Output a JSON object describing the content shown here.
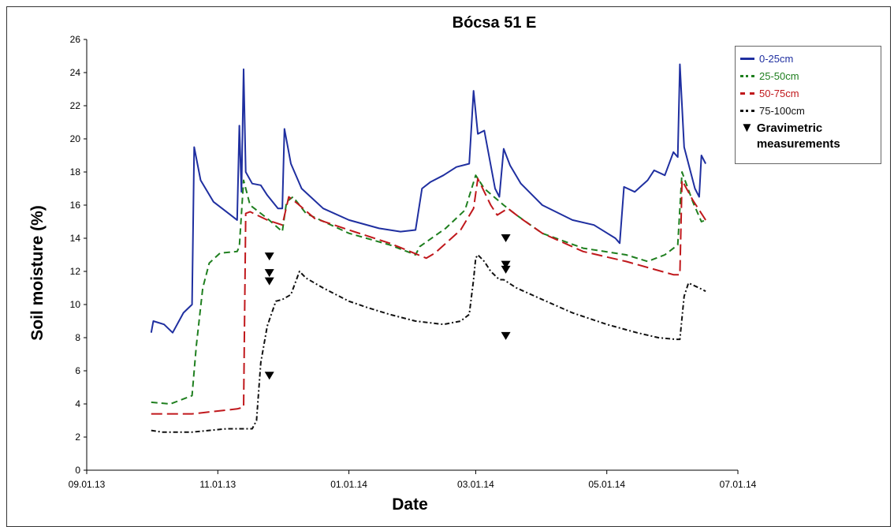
{
  "chart_data": {
    "type": "line",
    "title": "Bócsa 51 E",
    "xlabel": "Date",
    "ylabel": "Soil moisture (%)",
    "x_ticks": [
      "09.01.13",
      "11.01.13",
      "01.01.14",
      "03.01.14",
      "05.01.14",
      "07.01.14"
    ],
    "y_ticks": [
      0,
      2,
      4,
      6,
      8,
      10,
      12,
      14,
      16,
      18,
      20,
      22,
      24,
      26
    ],
    "xlim": [
      "2013-09-01",
      "2014-07-01"
    ],
    "ylim": [
      0,
      26
    ],
    "legend_position": "top-right",
    "series": [
      {
        "name": "0-25cm",
        "color": "#1f2fa0",
        "dash": "solid",
        "points": [
          [
            "2013-10-01",
            8.3
          ],
          [
            "2013-10-02",
            9.0
          ],
          [
            "2013-10-07",
            8.8
          ],
          [
            "2013-10-11",
            8.3
          ],
          [
            "2013-10-16",
            9.5
          ],
          [
            "2013-10-20",
            10.0
          ],
          [
            "2013-10-21",
            19.5
          ],
          [
            "2013-10-24",
            17.5
          ],
          [
            "2013-10-30",
            16.2
          ],
          [
            "2013-11-07",
            15.4
          ],
          [
            "2013-11-10",
            15.1
          ],
          [
            "2013-11-11",
            20.8
          ],
          [
            "2013-11-12",
            16.8
          ],
          [
            "2013-11-13",
            24.2
          ],
          [
            "2013-11-14",
            18.0
          ],
          [
            "2013-11-17",
            17.3
          ],
          [
            "2013-11-21",
            17.2
          ],
          [
            "2013-11-24",
            16.6
          ],
          [
            "2013-11-29",
            15.8
          ],
          [
            "2013-12-01",
            15.8
          ],
          [
            "2013-12-02",
            20.6
          ],
          [
            "2013-12-05",
            18.5
          ],
          [
            "2013-12-10",
            17.0
          ],
          [
            "2013-12-20",
            15.8
          ],
          [
            "2014-01-01",
            15.1
          ],
          [
            "2014-01-15",
            14.6
          ],
          [
            "2014-01-25",
            14.4
          ],
          [
            "2014-02-01",
            14.5
          ],
          [
            "2014-02-04",
            17.0
          ],
          [
            "2014-02-08",
            17.4
          ],
          [
            "2014-02-14",
            17.8
          ],
          [
            "2014-02-20",
            18.3
          ],
          [
            "2014-02-26",
            18.5
          ],
          [
            "2014-02-28",
            22.9
          ],
          [
            "2014-03-02",
            20.3
          ],
          [
            "2014-03-05",
            20.5
          ],
          [
            "2014-03-10",
            17.0
          ],
          [
            "2014-03-12",
            16.5
          ],
          [
            "2014-03-14",
            19.4
          ],
          [
            "2014-03-17",
            18.4
          ],
          [
            "2014-03-22",
            17.3
          ],
          [
            "2014-04-01",
            16.0
          ],
          [
            "2014-04-15",
            15.1
          ],
          [
            "2014-04-25",
            14.8
          ],
          [
            "2014-05-05",
            14.0
          ],
          [
            "2014-05-07",
            13.7
          ],
          [
            "2014-05-09",
            17.1
          ],
          [
            "2014-05-14",
            16.8
          ],
          [
            "2014-05-20",
            17.5
          ],
          [
            "2014-05-23",
            18.1
          ],
          [
            "2014-05-28",
            17.8
          ],
          [
            "2014-06-01",
            19.2
          ],
          [
            "2014-06-03",
            18.9
          ],
          [
            "2014-06-04",
            24.5
          ],
          [
            "2014-06-06",
            19.5
          ],
          [
            "2014-06-11",
            17.0
          ],
          [
            "2014-06-13",
            16.5
          ],
          [
            "2014-06-14",
            19.0
          ],
          [
            "2014-06-16",
            18.5
          ]
        ]
      },
      {
        "name": "25-50cm",
        "color": "#1f7f1f",
        "dash": "8,5",
        "points": [
          [
            "2013-10-01",
            4.1
          ],
          [
            "2013-10-10",
            4.0
          ],
          [
            "2013-10-20",
            4.5
          ],
          [
            "2013-10-22",
            7.5
          ],
          [
            "2013-10-25",
            11.0
          ],
          [
            "2013-10-28",
            12.5
          ],
          [
            "2013-11-02",
            13.1
          ],
          [
            "2013-11-10",
            13.2
          ],
          [
            "2013-11-11",
            13.5
          ],
          [
            "2013-11-13",
            17.5
          ],
          [
            "2013-11-16",
            16.0
          ],
          [
            "2013-11-24",
            15.2
          ],
          [
            "2013-12-01",
            14.4
          ],
          [
            "2013-12-03",
            16.2
          ],
          [
            "2013-12-06",
            16.5
          ],
          [
            "2013-12-12",
            15.5
          ],
          [
            "2014-01-01",
            14.3
          ],
          [
            "2014-01-20",
            13.6
          ],
          [
            "2014-02-01",
            13.0
          ],
          [
            "2014-02-03",
            13.5
          ],
          [
            "2014-02-15",
            14.6
          ],
          [
            "2014-02-24",
            15.7
          ],
          [
            "2014-03-01",
            17.8
          ],
          [
            "2014-03-05",
            17.0
          ],
          [
            "2014-03-14",
            16.0
          ],
          [
            "2014-03-20",
            15.4
          ],
          [
            "2014-04-01",
            14.3
          ],
          [
            "2014-04-20",
            13.4
          ],
          [
            "2014-05-10",
            13.0
          ],
          [
            "2014-05-20",
            12.6
          ],
          [
            "2014-05-28",
            13.0
          ],
          [
            "2014-06-03",
            13.6
          ],
          [
            "2014-06-05",
            18.0
          ],
          [
            "2014-06-10",
            16.2
          ],
          [
            "2014-06-14",
            15.0
          ],
          [
            "2014-06-16",
            15.1
          ]
        ]
      },
      {
        "name": "50-75cm",
        "color": "#c0181c",
        "dash": "14,6",
        "points": [
          [
            "2013-10-01",
            3.4
          ],
          [
            "2013-10-20",
            3.4
          ],
          [
            "2013-11-10",
            3.7
          ],
          [
            "2013-11-13",
            3.8
          ],
          [
            "2013-11-14",
            15.5
          ],
          [
            "2013-11-16",
            15.6
          ],
          [
            "2013-11-24",
            15.1
          ],
          [
            "2013-12-01",
            14.8
          ],
          [
            "2013-12-04",
            16.5
          ],
          [
            "2013-12-08",
            16.1
          ],
          [
            "2013-12-16",
            15.2
          ],
          [
            "2014-01-01",
            14.5
          ],
          [
            "2014-01-20",
            13.7
          ],
          [
            "2014-02-06",
            12.8
          ],
          [
            "2014-02-10",
            13.1
          ],
          [
            "2014-02-22",
            14.5
          ],
          [
            "2014-02-28",
            15.8
          ],
          [
            "2014-03-02",
            17.6
          ],
          [
            "2014-03-08",
            16.0
          ],
          [
            "2014-03-11",
            15.4
          ],
          [
            "2014-03-16",
            15.8
          ],
          [
            "2014-03-22",
            15.2
          ],
          [
            "2014-04-01",
            14.3
          ],
          [
            "2014-04-20",
            13.2
          ],
          [
            "2014-05-10",
            12.6
          ],
          [
            "2014-06-01",
            11.8
          ],
          [
            "2014-06-04",
            11.8
          ],
          [
            "2014-06-05",
            17.5
          ],
          [
            "2014-06-10",
            16.3
          ],
          [
            "2014-06-16",
            15.1
          ]
        ]
      },
      {
        "name": "75-100cm",
        "color": "#111111",
        "dash": "6,3,2,3",
        "points": [
          [
            "2013-10-01",
            2.4
          ],
          [
            "2013-10-06",
            2.3
          ],
          [
            "2013-10-11",
            2.3
          ],
          [
            "2013-10-20",
            2.3
          ],
          [
            "2013-11-05",
            2.5
          ],
          [
            "2013-11-17",
            2.5
          ],
          [
            "2013-11-19",
            3.0
          ],
          [
            "2013-11-21",
            6.5
          ],
          [
            "2013-11-24",
            8.7
          ],
          [
            "2013-11-28",
            10.2
          ],
          [
            "2013-12-01",
            10.3
          ],
          [
            "2013-12-05",
            10.6
          ],
          [
            "2013-12-09",
            12.0
          ],
          [
            "2013-12-12",
            11.6
          ],
          [
            "2013-12-20",
            11.0
          ],
          [
            "2014-01-01",
            10.2
          ],
          [
            "2014-01-10",
            9.8
          ],
          [
            "2014-01-20",
            9.4
          ],
          [
            "2014-02-01",
            9.0
          ],
          [
            "2014-02-14",
            8.8
          ],
          [
            "2014-02-22",
            9.0
          ],
          [
            "2014-02-26",
            9.4
          ],
          [
            "2014-02-28",
            11.5
          ],
          [
            "2014-03-01",
            12.8
          ],
          [
            "2014-03-02",
            13.0
          ],
          [
            "2014-03-05",
            12.6
          ],
          [
            "2014-03-08",
            12.0
          ],
          [
            "2014-03-12",
            11.5
          ],
          [
            "2014-03-14",
            11.5
          ],
          [
            "2014-03-20",
            11.0
          ],
          [
            "2014-04-01",
            10.3
          ],
          [
            "2014-04-15",
            9.5
          ],
          [
            "2014-05-01",
            8.8
          ],
          [
            "2014-05-15",
            8.3
          ],
          [
            "2014-05-25",
            8.0
          ],
          [
            "2014-06-02",
            7.9
          ],
          [
            "2014-06-04",
            7.9
          ],
          [
            "2014-06-06",
            10.5
          ],
          [
            "2014-06-08",
            11.3
          ],
          [
            "2014-06-13",
            11.0
          ],
          [
            "2014-06-16",
            10.8
          ]
        ]
      }
    ],
    "gravimetric_measurements": {
      "name": "Gravimetric measurements",
      "marker": "▼",
      "points": [
        [
          "2013-11-25",
          12.9
        ],
        [
          "2013-11-25",
          11.9
        ],
        [
          "2013-11-25",
          11.4
        ],
        [
          "2013-11-25",
          5.7
        ],
        [
          "2014-03-15",
          14.0
        ],
        [
          "2014-03-15",
          12.4
        ],
        [
          "2014-03-15",
          12.1
        ],
        [
          "2014-03-15",
          8.1
        ]
      ]
    }
  },
  "legend": {
    "items": [
      "0-25cm",
      "25-50cm",
      "50-75cm",
      "75-100cm"
    ],
    "grav_icon": "▼",
    "grav_line1": "Gravimetric",
    "grav_line2": "measurements"
  }
}
